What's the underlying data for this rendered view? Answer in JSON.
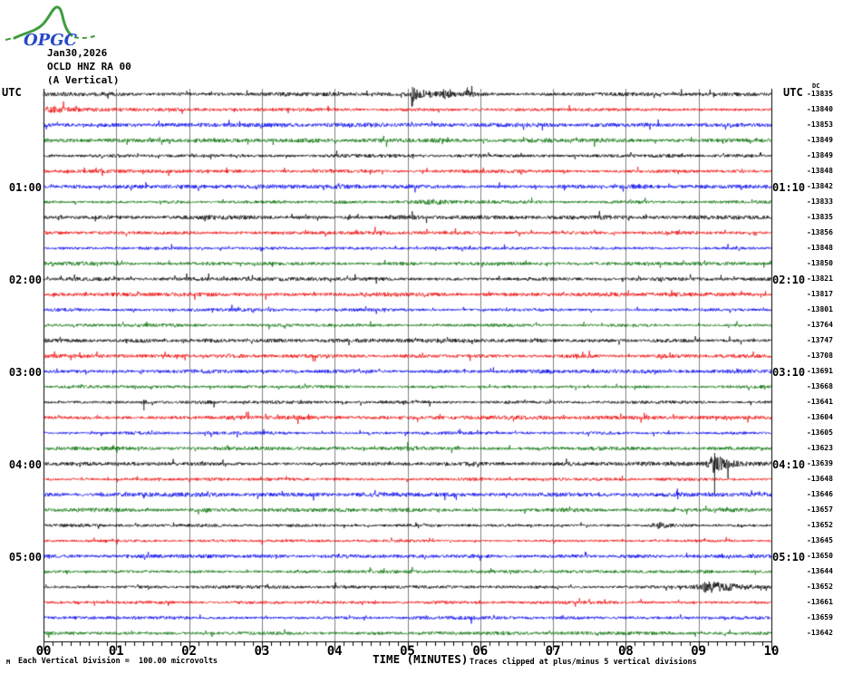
{
  "header": {
    "date": "Jan30,2026",
    "station": "OCLD HNZ RA 00",
    "component": "(A Vertical)",
    "logo_text": "OPGC"
  },
  "axis": {
    "utc_left": "UTC",
    "utc_right": "UTC",
    "dc_label": "DC",
    "x_title": "TIME (MINUTES)",
    "x_tick_labels": [
      "00",
      "01",
      "02",
      "03",
      "04",
      "05",
      "06",
      "07",
      "08",
      "09",
      "10"
    ]
  },
  "footer": {
    "tiny_mark": "M",
    "scale_note": "Each Vertical Division =  100.00 microvolts",
    "clip_note": "Traces clipped at plus/minus 5 vertical divisions"
  },
  "colors": {
    "black": "#000000",
    "red": "#ee0000",
    "blue": "#0000ee",
    "green": "#006e00",
    "grid": "#808080",
    "border": "#000000",
    "logo_green": "#3f9c3f",
    "logo_blue": "#2547c8"
  },
  "chart_data": {
    "type": "line",
    "subtype": "helicorder-seismogram",
    "title": "OCLD HNZ RA 00 (A Vertical) Jan30,2026",
    "xlabel": "TIME (MINUTES)",
    "x_range_minutes": [
      0,
      10
    ],
    "minutes_per_trace": 10,
    "x_tick_labels": [
      "00",
      "01",
      "02",
      "03",
      "04",
      "05",
      "06",
      "07",
      "08",
      "09",
      "10"
    ],
    "row_order": "top to bottom, consecutive 10-minute UTC windows starting 00:00",
    "y_scale_note": "Each Vertical Division =  100.00 microvolts",
    "clip_note": "Traces clipped at plus/minus 5 vertical divisions",
    "events_note": "events: m = minutes into trace, a = relative burst amplitude, w = attack width (min), c = decay time (min), su/sd = spike up/down extent",
    "traces": [
      {
        "start": "00:00",
        "color": "black",
        "dc": -13835,
        "left_label": null,
        "right_label": null,
        "events": [
          {
            "m": 5.07,
            "a": 6,
            "w": 0.02,
            "c": 0.2,
            "su": 8,
            "sd": 13
          },
          {
            "m": 5.5,
            "a": 3,
            "w": 0.03,
            "c": 0.1
          },
          {
            "m": 5.82,
            "a": 2.5,
            "w": 0.02,
            "c": 0.08
          }
        ]
      },
      {
        "start": "00:10",
        "color": "red",
        "dc": -13840,
        "left_label": null,
        "right_label": null,
        "events": [
          {
            "m": 0.15,
            "a": 2.5,
            "w": 0.1,
            "c": 0.2
          }
        ]
      },
      {
        "start": "00:20",
        "color": "blue",
        "dc": -13853,
        "left_label": null,
        "right_label": null,
        "events": []
      },
      {
        "start": "00:30",
        "color": "green",
        "dc": -13849,
        "left_label": null,
        "right_label": null,
        "events": []
      },
      {
        "start": "00:40",
        "color": "black",
        "dc": -13849,
        "left_label": null,
        "right_label": null,
        "events": []
      },
      {
        "start": "00:50",
        "color": "red",
        "dc": -13848,
        "left_label": null,
        "right_label": null,
        "events": []
      },
      {
        "start": "01:00",
        "color": "blue",
        "dc": -13842,
        "left_label": "01:00",
        "right_label": "01:10",
        "events": []
      },
      {
        "start": "01:10",
        "color": "green",
        "dc": -13833,
        "left_label": null,
        "right_label": null,
        "events": [
          {
            "m": 5.4,
            "a": 2,
            "w": 0.15,
            "c": 0.2
          }
        ]
      },
      {
        "start": "01:20",
        "color": "black",
        "dc": -13835,
        "left_label": null,
        "right_label": null,
        "events": []
      },
      {
        "start": "01:30",
        "color": "red",
        "dc": -13856,
        "left_label": null,
        "right_label": null,
        "events": []
      },
      {
        "start": "01:40",
        "color": "blue",
        "dc": -13848,
        "left_label": null,
        "right_label": null,
        "events": []
      },
      {
        "start": "01:50",
        "color": "green",
        "dc": -13850,
        "left_label": null,
        "right_label": null,
        "events": []
      },
      {
        "start": "02:00",
        "color": "black",
        "dc": -13821,
        "left_label": "02:00",
        "right_label": "02:10",
        "events": []
      },
      {
        "start": "02:10",
        "color": "red",
        "dc": -13817,
        "left_label": null,
        "right_label": null,
        "events": []
      },
      {
        "start": "02:20",
        "color": "blue",
        "dc": -13801,
        "left_label": null,
        "right_label": null,
        "events": []
      },
      {
        "start": "02:30",
        "color": "green",
        "dc": -13764,
        "left_label": null,
        "right_label": null,
        "events": []
      },
      {
        "start": "02:40",
        "color": "black",
        "dc": -13747,
        "left_label": null,
        "right_label": null,
        "events": []
      },
      {
        "start": "02:50",
        "color": "red",
        "dc": -13708,
        "left_label": null,
        "right_label": null,
        "events": []
      },
      {
        "start": "03:00",
        "color": "blue",
        "dc": -13691,
        "left_label": "03:00",
        "right_label": "03:10",
        "events": []
      },
      {
        "start": "03:10",
        "color": "green",
        "dc": -13668,
        "left_label": null,
        "right_label": null,
        "events": []
      },
      {
        "start": "03:20",
        "color": "black",
        "dc": -13641,
        "left_label": null,
        "right_label": null,
        "events": [
          {
            "m": 1.38,
            "a": 2,
            "w": 0.02,
            "c": 0.04,
            "sd": 9
          }
        ]
      },
      {
        "start": "03:30",
        "color": "red",
        "dc": -13604,
        "left_label": null,
        "right_label": null,
        "events": []
      },
      {
        "start": "03:40",
        "color": "blue",
        "dc": -13605,
        "left_label": null,
        "right_label": null,
        "events": []
      },
      {
        "start": "03:50",
        "color": "green",
        "dc": -13623,
        "left_label": null,
        "right_label": null,
        "events": []
      },
      {
        "start": "04:00",
        "color": "black",
        "dc": -13639,
        "left_label": "04:00",
        "right_label": "04:10",
        "events": [
          {
            "m": 9.22,
            "a": 9,
            "w": 0.06,
            "c": 0.18,
            "su": 12,
            "sd": 34
          }
        ]
      },
      {
        "start": "04:10",
        "color": "red",
        "dc": -13648,
        "left_label": null,
        "right_label": null,
        "events": []
      },
      {
        "start": "04:20",
        "color": "blue",
        "dc": -13646,
        "left_label": null,
        "right_label": null,
        "events": []
      },
      {
        "start": "04:30",
        "color": "green",
        "dc": -13657,
        "left_label": null,
        "right_label": null,
        "events": []
      },
      {
        "start": "04:40",
        "color": "black",
        "dc": -13652,
        "left_label": null,
        "right_label": null,
        "events": [
          {
            "m": 8.45,
            "a": 3,
            "w": 0.06,
            "c": 0.12
          }
        ]
      },
      {
        "start": "04:50",
        "color": "red",
        "dc": -13645,
        "left_label": null,
        "right_label": null,
        "events": []
      },
      {
        "start": "05:00",
        "color": "blue",
        "dc": -13650,
        "left_label": "05:00",
        "right_label": "05:10",
        "events": []
      },
      {
        "start": "05:10",
        "color": "green",
        "dc": -13644,
        "left_label": null,
        "right_label": null,
        "events": []
      },
      {
        "start": "05:20",
        "color": "black",
        "dc": -13652,
        "left_label": null,
        "right_label": null,
        "events": [
          {
            "m": 9.15,
            "a": 5,
            "w": 0.1,
            "c": 0.45
          }
        ]
      },
      {
        "start": "05:30",
        "color": "red",
        "dc": -13661,
        "left_label": null,
        "right_label": null,
        "events": []
      },
      {
        "start": "05:40",
        "color": "blue",
        "dc": -13659,
        "left_label": null,
        "right_label": null,
        "events": []
      },
      {
        "start": "05:50",
        "color": "green",
        "dc": -13642,
        "left_label": null,
        "right_label": null,
        "events": []
      }
    ]
  }
}
